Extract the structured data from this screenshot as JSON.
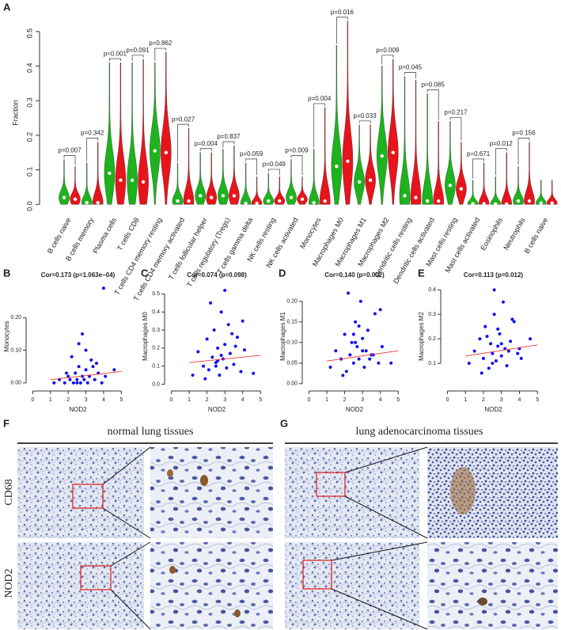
{
  "panel_labels": [
    "A",
    "B",
    "C",
    "D",
    "E",
    "F",
    "G"
  ],
  "ihc": {
    "left_title": "normal lung tissues",
    "right_title": "lung adenocarcinoma tissues",
    "rows": [
      "CD68",
      "NOD2"
    ]
  },
  "chart_data": [
    {
      "type": "violin",
      "y_label": "Fraction",
      "categories": [
        "B cells naive",
        "B cells memory",
        "Plasma cells",
        "T cells CD8",
        "T cells CD4 memory resting",
        "T cells CD4 memory activated",
        "T cells follicular helper",
        "T cells regulatory (Tregs)",
        "T cells gamma delta",
        "NK cells resting",
        "NK cells activated",
        "Monocytes",
        "Macrophages M0",
        "Macrophages M1",
        "Macrophages M2",
        "Dendritic cells resting",
        "Dendritic cells activated",
        "Mast cells resting",
        "Mast cells activated",
        "Eosinophils",
        "Neutrophils",
        "B cells naive"
      ],
      "series": [
        {
          "color": "#1db31d",
          "values": [
            0.02,
            0.005,
            0.09,
            0.07,
            0.155,
            0.01,
            0.025,
            0.025,
            0.003,
            0.01,
            0.02,
            0.005,
            0.11,
            0.065,
            0.14,
            0.025,
            0.01,
            0.055,
            0.002,
            0.001,
            0.01,
            0.004
          ],
          "max": [
            0.13,
            0.12,
            0.41,
            0.41,
            0.41,
            0.12,
            0.15,
            0.16,
            0.12,
            0.09,
            0.13,
            0.16,
            0.46,
            0.23,
            0.4,
            0.37,
            0.32,
            0.24,
            0.07,
            0.08,
            0.11,
            0.07
          ]
        },
        {
          "color": "#e8141c",
          "values": [
            0.015,
            0.005,
            0.07,
            0.065,
            0.15,
            0.01,
            0.02,
            0.025,
            0.003,
            0.01,
            0.015,
            0.01,
            0.125,
            0.07,
            0.15,
            0.02,
            0.01,
            0.045,
            0.002,
            0.001,
            0.01,
            0.004
          ],
          "max": [
            0.11,
            0.18,
            0.41,
            0.42,
            0.44,
            0.22,
            0.15,
            0.17,
            0.08,
            0.08,
            0.08,
            0.28,
            0.53,
            0.23,
            0.42,
            0.36,
            0.24,
            0.18,
            0.12,
            0.15,
            0.18,
            0.07
          ]
        }
      ],
      "p_values": [
        "p=0.007",
        "p=0.342",
        "p<0.001",
        "p=0.091",
        "p=0.862",
        "p=0.027",
        "p=0.004",
        "p=0.837",
        "p=0.059",
        "p=0.049",
        "p=0.009",
        "p=0.004",
        "p=0.016",
        "p=0.033",
        "p=0.009",
        "p=0.045",
        "p=0.085",
        "p=0.217",
        "p=0.671",
        "p=0.012",
        "p=0.156",
        null
      ],
      "ylim": [
        -0.02,
        0.55
      ],
      "yticks": [
        {
          "value": 0,
          "label": "0.0"
        },
        {
          "value": 0.1,
          "label": "0.1"
        },
        {
          "value": 0.2,
          "label": "0.2"
        },
        {
          "value": 0.3,
          "label": "0.3"
        },
        {
          "value": 0.4,
          "label": "0.4"
        },
        {
          "value": 0.5,
          "label": "0.5"
        }
      ]
    },
    {
      "type": "scatter",
      "title": "Cor=0.173 (p=1.063e−04)",
      "x_label": "NOD2",
      "y_label": "Monocytes",
      "color": "#1010ee",
      "x": [
        1.2,
        1.5,
        1.8,
        2.0,
        2.1,
        2.3,
        2.4,
        2.5,
        2.6,
        2.7,
        2.8,
        2.9,
        3.0,
        3.1,
        3.2,
        3.3,
        3.5,
        3.7,
        3.9,
        4.1,
        2.2,
        2.6,
        3.4,
        1.9,
        2.8,
        3.0,
        2.5,
        3.6,
        4.0,
        4.6
      ],
      "y": [
        0.0,
        0.01,
        0.0,
        0.02,
        0.01,
        0.0,
        0.03,
        0.01,
        0.05,
        0.0,
        0.02,
        0.01,
        0.04,
        0.0,
        0.02,
        0.07,
        0.01,
        0.03,
        0.0,
        0.02,
        0.08,
        0.12,
        0.05,
        0.03,
        0.15,
        0.1,
        0.0,
        0.06,
        0.29,
        0.04
      ],
      "fit": {
        "color": "#ee3333",
        "x": [
          1,
          5
        ],
        "y": [
          0.01,
          0.035
        ]
      },
      "xlim": [
        -0.2,
        5.3
      ],
      "xticks": [
        0,
        1,
        2,
        3,
        4,
        5
      ],
      "ylim": [
        -0.015,
        0.3
      ],
      "yticks": [
        {
          "value": 0,
          "label": "0.00"
        },
        {
          "value": 0.1,
          "label": "0.10"
        },
        {
          "value": 0.2,
          "label": "0.20"
        }
      ]
    },
    {
      "type": "scatter",
      "title": "Cor=0.074 (p=0.098)",
      "x_label": "NOD2",
      "y_label": "Macrophages M0",
      "color": "#1010ee",
      "x": [
        1.2,
        1.5,
        1.8,
        2.0,
        2.1,
        2.3,
        2.4,
        2.5,
        2.6,
        2.7,
        2.8,
        2.9,
        3.0,
        3.1,
        3.2,
        3.3,
        3.5,
        3.7,
        3.9,
        4.1,
        2.2,
        2.6,
        3.4,
        1.9,
        2.8,
        3.0,
        2.5,
        3.6,
        4.0,
        4.6
      ],
      "y": [
        0.05,
        0.18,
        0.1,
        0.25,
        0.08,
        0.15,
        0.3,
        0.12,
        0.2,
        0.05,
        0.4,
        0.14,
        0.22,
        0.09,
        0.33,
        0.17,
        0.11,
        0.26,
        0.07,
        0.19,
        0.45,
        0.13,
        0.28,
        0.03,
        0.16,
        0.52,
        0.1,
        0.21,
        0.35,
        0.06
      ],
      "fit": {
        "color": "#ee3333",
        "x": [
          1,
          5
        ],
        "y": [
          0.12,
          0.16
        ]
      },
      "xlim": [
        -0.2,
        5.3
      ],
      "xticks": [
        0,
        1,
        2,
        3,
        4,
        5
      ],
      "ylim": [
        -0.02,
        0.55
      ],
      "yticks": [
        {
          "value": 0,
          "label": "0.0"
        },
        0.1,
        0.2,
        0.3,
        0.4,
        0.5
      ]
    },
    {
      "type": "scatter",
      "title": "Cor=0.140 (p=0.002)",
      "x_label": "NOD2",
      "y_label": "Macrophages M1",
      "color": "#1010ee",
      "x": [
        1.2,
        1.5,
        1.8,
        2.0,
        2.1,
        2.3,
        2.4,
        2.5,
        2.6,
        2.7,
        2.8,
        2.9,
        3.0,
        3.1,
        3.2,
        3.3,
        3.5,
        3.7,
        3.9,
        4.1,
        2.2,
        2.6,
        3.4,
        1.9,
        2.8,
        3.0,
        2.5,
        3.6,
        4.0,
        4.6
      ],
      "y": [
        0.04,
        0.08,
        0.06,
        0.12,
        0.03,
        0.07,
        0.1,
        0.05,
        0.15,
        0.09,
        0.06,
        0.2,
        0.11,
        0.04,
        0.08,
        0.13,
        0.07,
        0.17,
        0.05,
        0.09,
        0.22,
        0.1,
        0.06,
        0.02,
        0.14,
        0.08,
        0.12,
        0.07,
        0.18,
        0.05
      ],
      "fit": {
        "color": "#ee3333",
        "x": [
          1,
          5
        ],
        "y": [
          0.055,
          0.08
        ]
      },
      "xlim": [
        -0.2,
        5.3
      ],
      "xticks": [
        0,
        1,
        2,
        3,
        4,
        5
      ],
      "ylim": [
        -0.01,
        0.24
      ],
      "yticks": [
        {
          "value": 0,
          "label": "0.00"
        },
        {
          "value": 0.05,
          "label": "0.05"
        },
        {
          "value": 0.1,
          "label": "0.10"
        },
        {
          "value": 0.15,
          "label": "0.15"
        },
        {
          "value": 0.2,
          "label": "0.20"
        }
      ]
    },
    {
      "type": "scatter",
      "title": "Cor=0.113 (p=0.012)",
      "x_label": "NOD2",
      "y_label": "Macrophages M2",
      "color": "#1010ee",
      "x": [
        1.2,
        1.5,
        1.8,
        2.0,
        2.1,
        2.3,
        2.4,
        2.5,
        2.6,
        2.7,
        2.8,
        2.9,
        3.0,
        3.1,
        3.2,
        3.3,
        3.5,
        3.7,
        3.9,
        4.1,
        2.2,
        2.6,
        3.4,
        1.9,
        2.8,
        3.0,
        2.5,
        3.6,
        4.0,
        4.6
      ],
      "y": [
        0.1,
        0.15,
        0.2,
        0.12,
        0.25,
        0.08,
        0.18,
        0.14,
        0.3,
        0.11,
        0.17,
        0.22,
        0.13,
        0.35,
        0.16,
        0.09,
        0.19,
        0.27,
        0.14,
        0.12,
        0.21,
        0.4,
        0.15,
        0.06,
        0.24,
        0.18,
        0.1,
        0.28,
        0.16,
        0.2
      ],
      "fit": {
        "color": "#ee3333",
        "x": [
          1,
          5
        ],
        "y": [
          0.13,
          0.175
        ]
      },
      "xlim": [
        -0.2,
        5.3
      ],
      "xticks": [
        0,
        1,
        2,
        3,
        4,
        5
      ],
      "ylim": [
        0.0,
        0.42
      ],
      "yticks": [
        {
          "value": 0.1,
          "label": "0.1"
        },
        {
          "value": 0.2,
          "label": "0.2"
        },
        {
          "value": 0.3,
          "label": "0.3"
        },
        {
          "value": 0.4,
          "label": "0.4"
        }
      ]
    }
  ]
}
